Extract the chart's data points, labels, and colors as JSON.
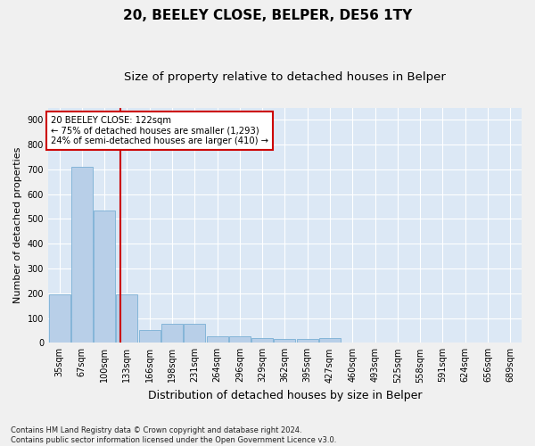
{
  "title1": "20, BEELEY CLOSE, BELPER, DE56 1TY",
  "title2": "Size of property relative to detached houses in Belper",
  "xlabel": "Distribution of detached houses by size in Belper",
  "ylabel": "Number of detached properties",
  "categories": [
    "35sqm",
    "67sqm",
    "100sqm",
    "133sqm",
    "166sqm",
    "198sqm",
    "231sqm",
    "264sqm",
    "296sqm",
    "329sqm",
    "362sqm",
    "395sqm",
    "427sqm",
    "460sqm",
    "493sqm",
    "525sqm",
    "558sqm",
    "591sqm",
    "624sqm",
    "656sqm",
    "689sqm"
  ],
  "values": [
    195,
    710,
    535,
    195,
    50,
    75,
    75,
    25,
    25,
    20,
    15,
    15,
    18,
    0,
    0,
    0,
    0,
    0,
    0,
    0,
    0
  ],
  "bar_color": "#b8cfe8",
  "bar_edgecolor": "#7aafd4",
  "vline_x_index": 2.72,
  "vline_color": "#cc0000",
  "annotation_text": "20 BEELEY CLOSE: 122sqm\n← 75% of detached houses are smaller (1,293)\n24% of semi-detached houses are larger (410) →",
  "annotation_box_color": "#ffffff",
  "annotation_box_edgecolor": "#cc0000",
  "ylim": [
    0,
    950
  ],
  "yticks": [
    0,
    100,
    200,
    300,
    400,
    500,
    600,
    700,
    800,
    900
  ],
  "footnote": "Contains HM Land Registry data © Crown copyright and database right 2024.\nContains public sector information licensed under the Open Government Licence v3.0.",
  "bg_color": "#dce8f5",
  "grid_color": "#ffffff",
  "fig_bg_color": "#f0f0f0",
  "title1_fontsize": 11,
  "title2_fontsize": 9.5,
  "ylabel_fontsize": 8,
  "xlabel_fontsize": 9,
  "tick_fontsize": 7,
  "annotation_fontsize": 7.2
}
